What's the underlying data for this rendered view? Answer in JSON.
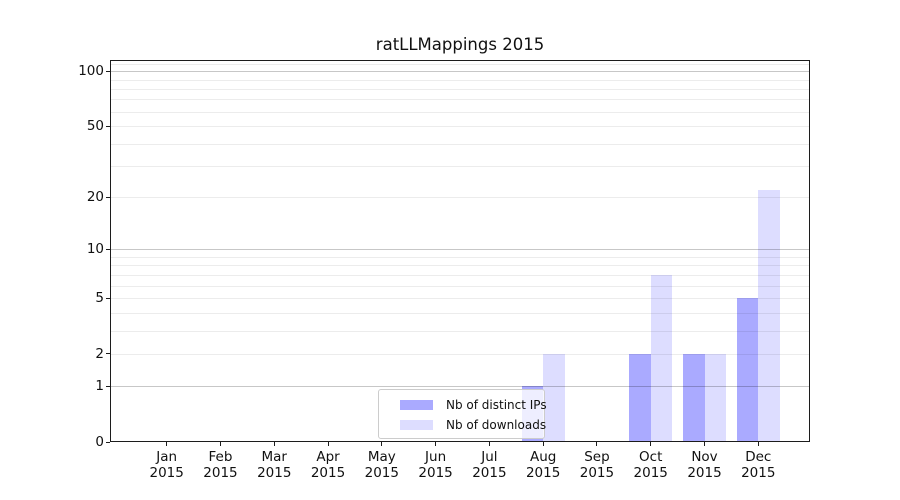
{
  "title": "ratLLMappings 2015",
  "chart_data": {
    "type": "bar",
    "title": "ratLLMappings 2015",
    "categories": [
      "Jan",
      "Feb",
      "Mar",
      "Apr",
      "May",
      "Jun",
      "Jul",
      "Aug",
      "Sep",
      "Oct",
      "Nov",
      "Dec"
    ],
    "x_year_label": "2015",
    "series": [
      {
        "name": "Nb of distinct IPs",
        "color": "#aaaaff",
        "values": [
          0,
          0,
          0,
          0,
          0,
          0,
          0,
          1,
          0,
          2,
          2,
          5
        ]
      },
      {
        "name": "Nb of downloads",
        "color": "#ddddff",
        "values": [
          0,
          0,
          0,
          0,
          0,
          0,
          0,
          2,
          0,
          7,
          2,
          22
        ]
      }
    ],
    "yscale": "log1p",
    "ylim": [
      0,
      115
    ],
    "yticks": [
      {
        "value": 0,
        "label": "0"
      },
      {
        "value": 1,
        "label": "1"
      },
      {
        "value": 2,
        "label": "2"
      },
      {
        "value": 5,
        "label": "5"
      },
      {
        "value": 10,
        "label": "10"
      },
      {
        "value": 20,
        "label": "20"
      },
      {
        "value": 50,
        "label": "50"
      },
      {
        "value": 100,
        "label": "100"
      }
    ],
    "major_gridlines": [
      1,
      10,
      100
    ],
    "minor_gridlines": [
      2,
      3,
      4,
      5,
      6,
      7,
      8,
      9,
      20,
      30,
      40,
      50,
      60,
      70,
      80,
      90,
      110
    ],
    "grid": "both",
    "legend_position": "lower center inside plot",
    "xlabel": "",
    "ylabel": ""
  },
  "colors": {
    "bar_distinct_ips": "#aaaaff",
    "bar_downloads": "#ddddff",
    "grid_major": "rgba(0,0,0,0.22)",
    "grid_minor": "rgba(0,0,0,0.075)",
    "spine": "#1c1c1c",
    "text": "#111111",
    "legend_border": "#cccccc",
    "background": "#ffffff"
  }
}
